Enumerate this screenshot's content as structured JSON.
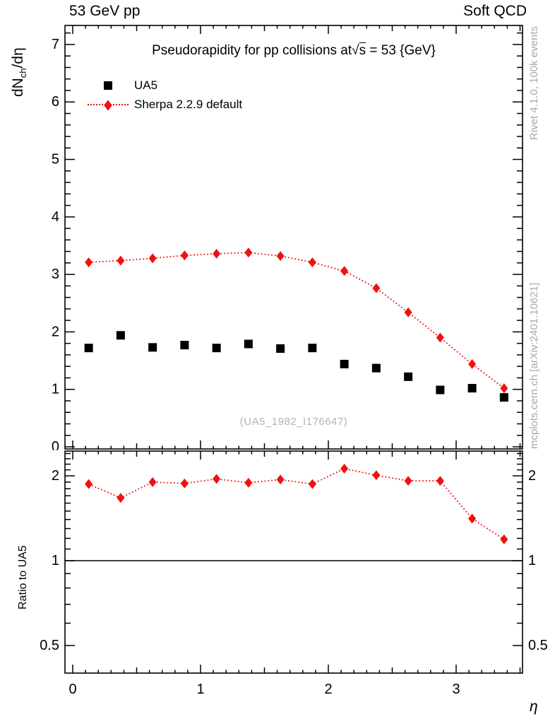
{
  "header": {
    "left": "53 GeV pp",
    "right": "Soft QCD"
  },
  "title": {
    "prefix": "Pseudorapidity for pp collisions at",
    "sqrt_symbol": "√",
    "sqrt_arg": "s",
    "suffix": " = 53 {GeV}"
  },
  "legend": [
    {
      "label": "UA5",
      "marker": "black-square"
    },
    {
      "label": "Sherpa 2.2.9 default",
      "marker": "red-diamond-dotted-line"
    }
  ],
  "axes": {
    "y_main": {
      "label_d": "dN",
      "label_sub": "ch",
      "label_rest": "/dη"
    },
    "y_ratio": {
      "label": "Ratio to UA5"
    },
    "x": {
      "label": "η"
    }
  },
  "side_texts": {
    "top_right": "Rivet 4.1.0,  100k events",
    "bottom_right": "mcplots.cern.ch [arXiv:2401.10621]"
  },
  "watermark": {
    "text": "(UA5_1982_I176647)"
  },
  "colors": {
    "black": "#000000",
    "accent_red": "#ee1111",
    "text_gray": "#a9a9a9",
    "watermark_gray": "#b5b5b5"
  },
  "chart_data": {
    "type": "scatter",
    "title": "Pseudorapidity for pp collisions at √s = 53 {GeV}",
    "xlabel": "η",
    "ylabel": "dN_ch/dη",
    "grid": false,
    "legend_position": "top-left",
    "x": [
      0.125,
      0.375,
      0.625,
      0.875,
      1.125,
      1.375,
      1.625,
      1.875,
      2.125,
      2.375,
      2.625,
      2.875,
      3.125,
      3.375
    ],
    "bin_width": 0.25,
    "series": [
      {
        "name": "UA5",
        "marker": "square",
        "color": "#000000",
        "line": "none",
        "values": [
          1.72,
          1.94,
          1.73,
          1.77,
          1.72,
          1.79,
          1.71,
          1.72,
          1.44,
          1.37,
          1.22,
          0.99,
          1.02,
          0.86
        ]
      },
      {
        "name": "Sherpa 2.2.9 default",
        "marker": "diamond",
        "color": "#ee1111",
        "line": "dotted",
        "values": [
          3.21,
          3.24,
          3.28,
          3.33,
          3.36,
          3.38,
          3.32,
          3.21,
          3.06,
          2.76,
          2.34,
          1.9,
          1.44,
          1.02
        ]
      }
    ],
    "main_axis": {
      "ylim": [
        0,
        7.33
      ],
      "ticks": [
        0,
        1,
        2,
        3,
        4,
        5,
        6,
        7
      ],
      "minor_step": 0.2
    },
    "x_axis": {
      "lim": [
        -0.06,
        3.52
      ],
      "ticks": [
        0,
        1,
        2,
        3
      ],
      "medium_step": 0.5,
      "minor_step": 0.1
    },
    "ratio": {
      "label": "Ratio to UA5",
      "definition": "Sherpa 2.2.9 default / UA5",
      "scale": "log",
      "ylim": [
        0.4,
        2.45
      ],
      "ticks": [
        0.5,
        1,
        2
      ],
      "unity_line": 1,
      "values": [
        1.87,
        1.67,
        1.9,
        1.88,
        1.95,
        1.89,
        1.94,
        1.87,
        2.12,
        2.01,
        1.92,
        1.92,
        1.41,
        1.19
      ]
    }
  }
}
